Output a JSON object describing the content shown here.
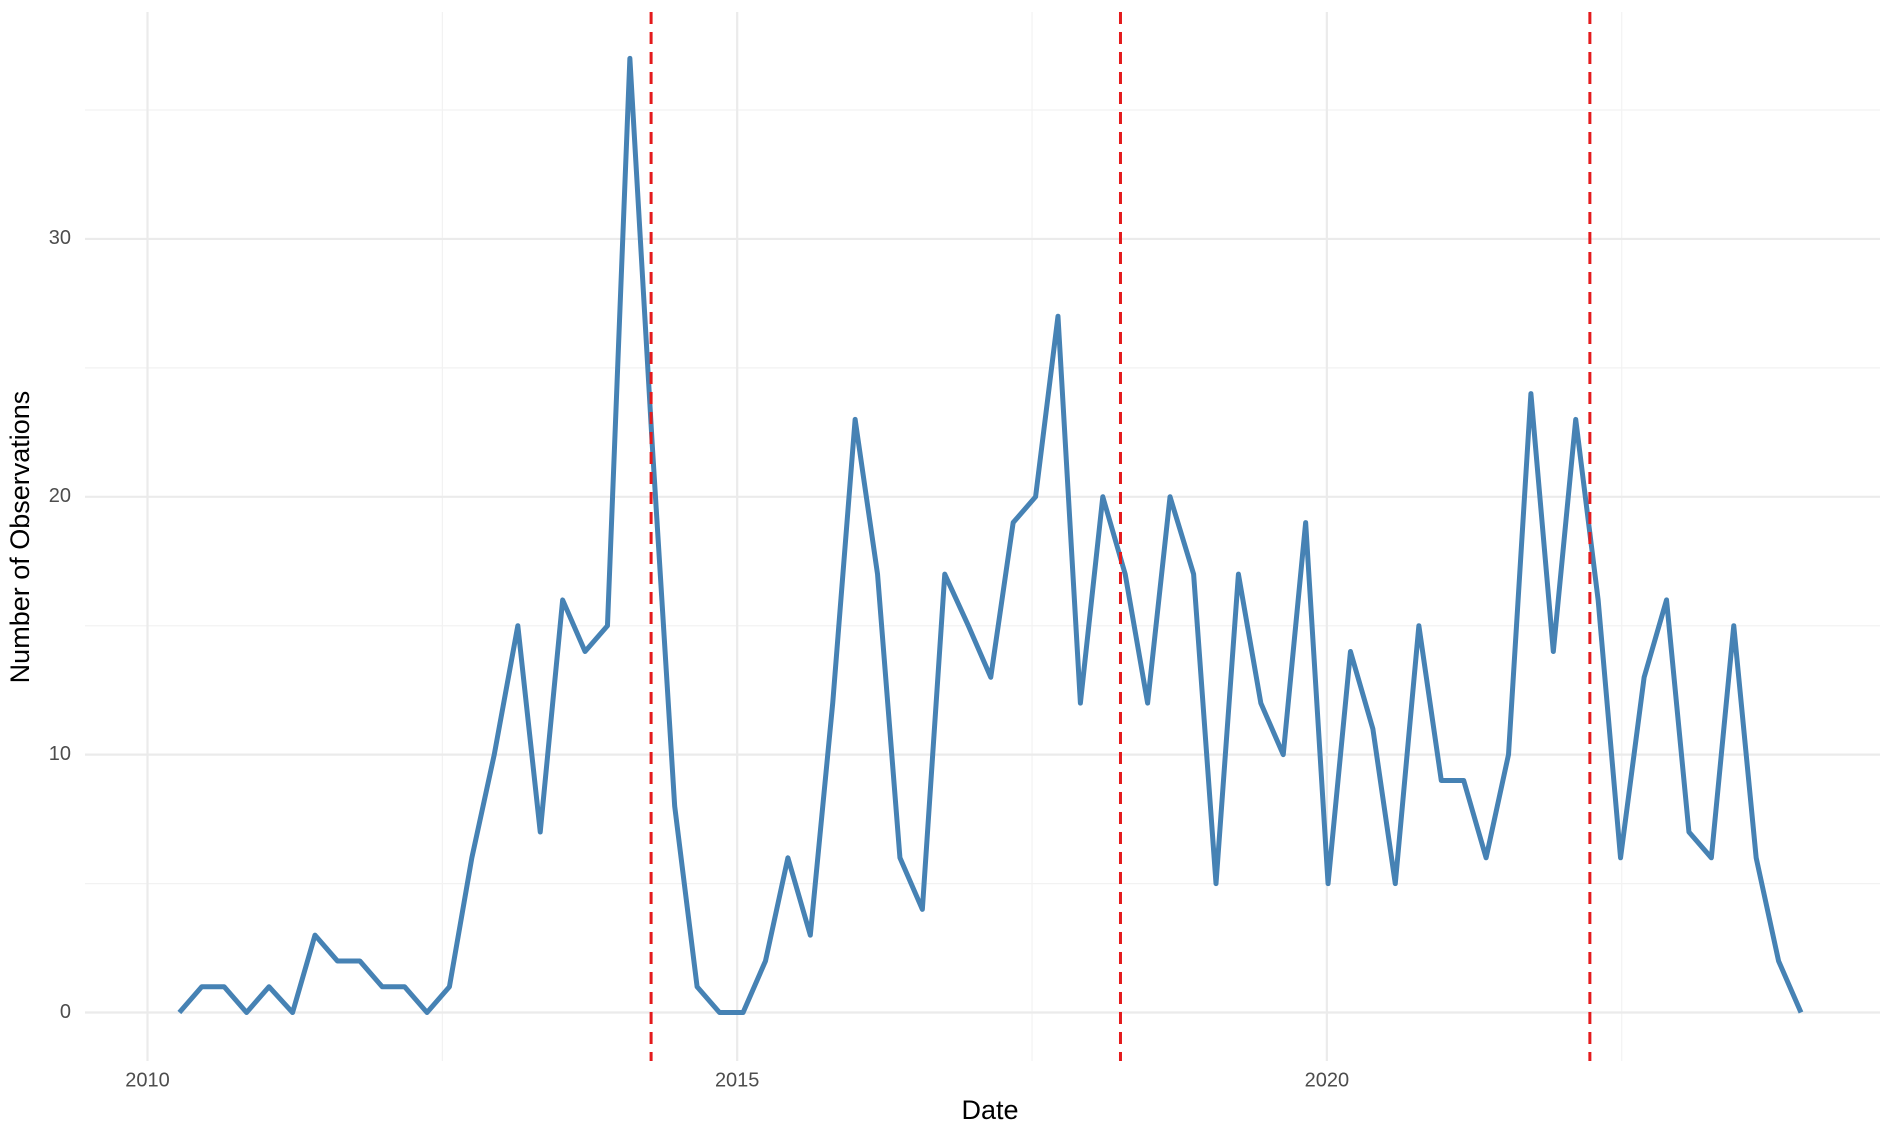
{
  "chart_data": {
    "type": "line",
    "x_label": "Date",
    "y_label": "Number of Observations",
    "x": [
      2010.27,
      2010.46,
      2010.65,
      2010.84,
      2011.03,
      2011.23,
      2011.42,
      2011.61,
      2011.8,
      2011.99,
      2012.18,
      2012.37,
      2012.56,
      2012.75,
      2012.94,
      2013.14,
      2013.33,
      2013.52,
      2013.71,
      2013.9,
      2014.09,
      2014.28,
      2014.47,
      2014.66,
      2014.85,
      2015.05,
      2015.24,
      2015.43,
      2015.62,
      2015.81,
      2016.0,
      2016.19,
      2016.38,
      2016.57,
      2016.76,
      2016.96,
      2017.15,
      2017.34,
      2017.53,
      2017.72,
      2017.91,
      2018.1,
      2018.29,
      2018.48,
      2018.67,
      2018.87,
      2019.06,
      2019.25,
      2019.44,
      2019.63,
      2019.82,
      2020.01,
      2020.2,
      2020.39,
      2020.58,
      2020.78,
      2020.97,
      2021.16,
      2021.35,
      2021.54,
      2021.73,
      2021.92,
      2022.11,
      2022.3,
      2022.49,
      2022.69,
      2022.88,
      2023.07,
      2023.26,
      2023.45,
      2023.64,
      2023.83,
      2024.02
    ],
    "series": [
      {
        "color": "#4682b4",
        "values": [
          0,
          1,
          1,
          0,
          1,
          0,
          3,
          2,
          2,
          1,
          1,
          0,
          1,
          6,
          10,
          15,
          7,
          16,
          14,
          15,
          37,
          22,
          8,
          1,
          0,
          0,
          2,
          6,
          3,
          12,
          23,
          17,
          6,
          4,
          17,
          15,
          13,
          19,
          20,
          27,
          12,
          20,
          17,
          12,
          20,
          17,
          5,
          17,
          12,
          10,
          19,
          5,
          14,
          11,
          5,
          15,
          9,
          9,
          6,
          10,
          24,
          14,
          23,
          16,
          6,
          13,
          16,
          7,
          6,
          15,
          6,
          2,
          0
        ]
      }
    ],
    "vlines": {
      "color": "#e41a1c",
      "dashed": true,
      "values": [
        2014.27,
        2018.25,
        2022.23
      ]
    },
    "xlim": [
      2009.47,
      2024.69
    ],
    "ylim": [
      -1.88,
      38.8
    ],
    "xticks": [
      2010,
      2015,
      2020
    ],
    "yticks": [
      0,
      10,
      20,
      30
    ],
    "xminorticks": [
      2012.5,
      2017.5,
      2022.5
    ],
    "yminorticks": [
      5,
      15,
      25,
      35
    ],
    "grid": true
  }
}
